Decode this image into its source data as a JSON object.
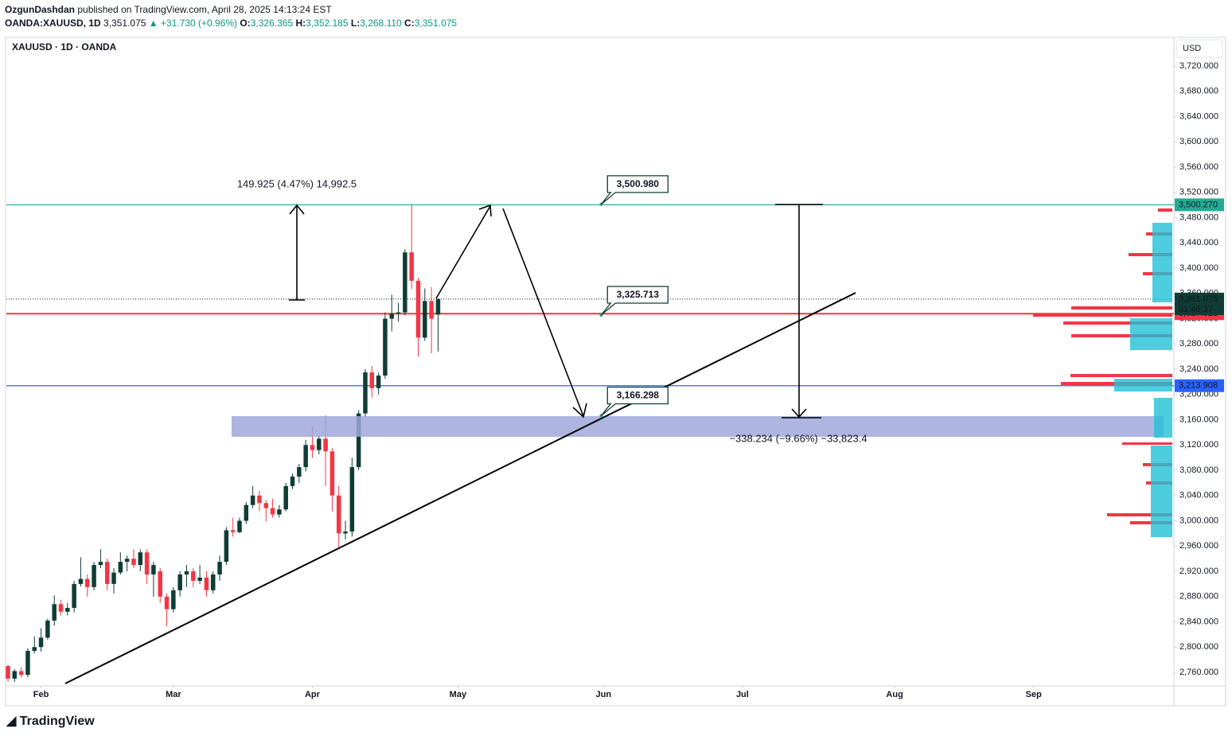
{
  "header": {
    "author": "OzgunDashdan",
    "published": "published on TradingView.com, April 28, 2025 14:13:24 EST",
    "symbol": "OANDA:XAUUSD, 1D",
    "last": "3,351.075",
    "change": "▲ +31.730 (+0.96%)",
    "ohlc": [
      {
        "key": "O:",
        "value": "3,326.365"
      },
      {
        "key": "H:",
        "value": "3,352.185"
      },
      {
        "key": "L:",
        "value": "3,268.110"
      },
      {
        "key": "C:",
        "value": "3,351.075"
      }
    ]
  },
  "footer": {
    "brand": "TradingView"
  },
  "chart_data": {
    "type": "candlestick",
    "legend": "XAUUSD · 1D · OANDA",
    "currency": "USD",
    "up_color": "#0f3d35",
    "down_color": "#f23645",
    "open": [
      2770,
      2750,
      2762,
      2756,
      2794,
      2800,
      2815,
      2842,
      2868,
      2856,
      2862,
      2900,
      2908,
      2895,
      2930,
      2935,
      2900,
      2918,
      2935,
      2940,
      2930,
      2950,
      2915,
      2920,
      2880,
      2860,
      2890,
      2915,
      2920,
      2905,
      2910,
      2890,
      2915,
      2935,
      2985,
      2982,
      3000,
      3025,
      3040,
      3028,
      3020,
      3010,
      3018,
      3055,
      3070,
      3085,
      3120,
      3112,
      3130,
      3110,
      3040,
      2980,
      2983,
      3085,
      3170,
      3235,
      3210,
      3230,
      3320,
      3328,
      3330,
      3425,
      3380,
      3290,
      3348,
      3326.365
    ],
    "high": [
      2772,
      2765,
      2768,
      2798,
      2817,
      2830,
      2845,
      2882,
      2875,
      2870,
      2905,
      2942,
      2915,
      2935,
      2955,
      2940,
      2925,
      2950,
      2945,
      2955,
      2955,
      2955,
      2935,
      2925,
      2885,
      2895,
      2920,
      2930,
      2925,
      2930,
      2920,
      2920,
      2945,
      2990,
      3005,
      3005,
      3030,
      3055,
      3048,
      3033,
      3035,
      3025,
      3060,
      3075,
      3090,
      3128,
      3149,
      3135,
      3167,
      3115,
      3055,
      3000,
      3100,
      3175,
      3240,
      3245,
      3235,
      3330,
      3358,
      3345,
      3430,
      3500,
      3385,
      3368,
      3370,
      3352.185
    ],
    "low": [
      2745,
      2745,
      2752,
      2752,
      2790,
      2793,
      2812,
      2834,
      2850,
      2850,
      2855,
      2896,
      2880,
      2890,
      2925,
      2890,
      2885,
      2915,
      2920,
      2925,
      2920,
      2900,
      2880,
      2870,
      2833,
      2855,
      2880,
      2895,
      2895,
      2900,
      2880,
      2885,
      2905,
      2930,
      2975,
      2980,
      2995,
      3020,
      3015,
      2999,
      3005,
      3005,
      3015,
      3050,
      3060,
      3078,
      3100,
      3105,
      3055,
      3015,
      2957,
      2970,
      2975,
      3080,
      3165,
      3195,
      3200,
      3225,
      3300,
      3315,
      3325,
      3367,
      3260,
      3285,
      3265,
      3268.11
    ],
    "close": [
      2750,
      2762,
      2756,
      2794,
      2800,
      2815,
      2842,
      2868,
      2856,
      2862,
      2900,
      2908,
      2895,
      2930,
      2935,
      2900,
      2918,
      2935,
      2940,
      2930,
      2950,
      2915,
      2930,
      2880,
      2860,
      2890,
      2915,
      2920,
      2905,
      2910,
      2890,
      2915,
      2935,
      2985,
      2982,
      3000,
      3025,
      3040,
      3028,
      3020,
      3010,
      3018,
      3055,
      3070,
      3085,
      3120,
      3112,
      3130,
      3110,
      3040,
      2980,
      2983,
      3085,
      3170,
      3235,
      3210,
      3230,
      3320,
      3328,
      3330,
      3425,
      3380,
      3290,
      3348,
      3320,
      3351.075
    ],
    "xlim": [
      -0.24,
      176.2
    ],
    "xticks": [
      {
        "value": 5,
        "label": "Feb"
      },
      {
        "value": 25,
        "label": "Mar"
      },
      {
        "value": 46,
        "label": "Apr"
      },
      {
        "value": 68,
        "label": "May"
      },
      {
        "value": 90,
        "label": "Jun"
      },
      {
        "value": 111,
        "label": "Jul"
      },
      {
        "value": 134,
        "label": "Aug"
      },
      {
        "value": 155,
        "label": "Sep"
      }
    ],
    "ylim": [
      2738.6,
      3765.4
    ],
    "yticks": [
      {
        "value": 2760,
        "label": "2,760.000"
      },
      {
        "value": 2800,
        "label": "2,800.000"
      },
      {
        "value": 2840,
        "label": "2,840.000"
      },
      {
        "value": 2880,
        "label": "2,880.000"
      },
      {
        "value": 2920,
        "label": "2,920.000"
      },
      {
        "value": 2960,
        "label": "2,960.000"
      },
      {
        "value": 3000,
        "label": "3,000.000"
      },
      {
        "value": 3040,
        "label": "3,040.000"
      },
      {
        "value": 3080,
        "label": "3,080.000"
      },
      {
        "value": 3120,
        "label": "3,120.000"
      },
      {
        "value": 3160,
        "label": "3,160.000"
      },
      {
        "value": 3200,
        "label": "3,200.000"
      },
      {
        "value": 3240,
        "label": "3,240.000"
      },
      {
        "value": 3280,
        "label": "3,280.000"
      },
      {
        "value": 3320,
        "label": "3,320.000"
      },
      {
        "value": 3360,
        "label": "3,360.000"
      },
      {
        "value": 3400,
        "label": "3,400.000"
      },
      {
        "value": 3440,
        "label": "3,440.000"
      },
      {
        "value": 3480,
        "label": "3,480.000"
      },
      {
        "value": 3520,
        "label": "3,520.000"
      },
      {
        "value": 3560,
        "label": "3,560.000"
      },
      {
        "value": 3600,
        "label": "3,600.000"
      },
      {
        "value": 3640,
        "label": "3,640.000"
      },
      {
        "value": 3680,
        "label": "3,680.000"
      },
      {
        "value": 3720,
        "label": "3,720.000"
      }
    ],
    "price_lines": [
      {
        "value": 3500.27,
        "label": "3,500.270",
        "color": "#22ab94"
      },
      {
        "value": 3327.923,
        "label": "3,327.923",
        "color": "#f23645"
      },
      {
        "value": 3213.908,
        "label": "3,213.908",
        "color": "#2962ff"
      }
    ],
    "last_price": {
      "value": 3351.075,
      "label": "3,351.075",
      "countdown": "01:46:37"
    },
    "callouts": [
      {
        "value": 3500.98,
        "label": "3,500.980"
      },
      {
        "value": 3325.713,
        "label": "3,325.713"
      },
      {
        "value": 3166.298,
        "label": "3,166.298"
      }
    ],
    "measures": [
      "149.925 (4.47%) 14,992.5",
      "−338.234 (−9.66%) −33,823.4"
    ]
  }
}
